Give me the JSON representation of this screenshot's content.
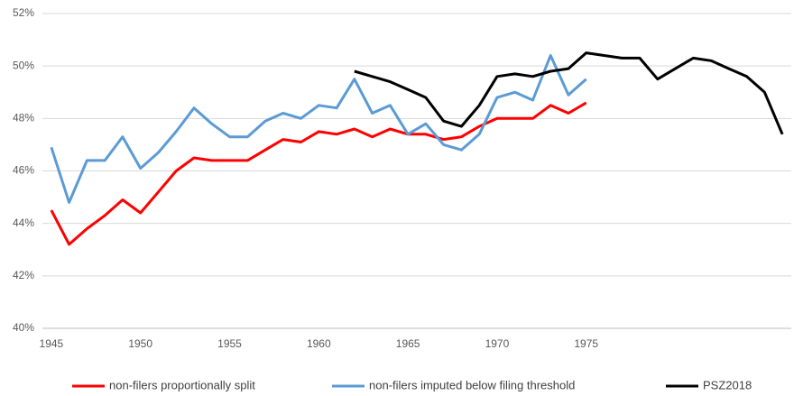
{
  "chart_data": {
    "type": "line",
    "x": [
      1945,
      1946,
      1947,
      1948,
      1949,
      1950,
      1951,
      1952,
      1953,
      1954,
      1955,
      1956,
      1957,
      1958,
      1959,
      1960,
      1961,
      1962,
      1963,
      1964,
      1965,
      1966,
      1967,
      1968,
      1969,
      1970,
      1971,
      1972,
      1973,
      1974,
      1975,
      1976,
      1977,
      1978,
      1979,
      1980,
      1981,
      1982,
      1983,
      1984,
      1985,
      1986
    ],
    "series": [
      {
        "name": "non-filers proportionally split",
        "color": "#ff0000",
        "values": [
          44.5,
          43.2,
          43.8,
          44.3,
          44.9,
          44.4,
          45.2,
          46.0,
          46.5,
          46.4,
          46.4,
          46.4,
          46.8,
          47.2,
          47.1,
          47.5,
          47.4,
          47.6,
          47.3,
          47.6,
          47.4,
          47.4,
          47.2,
          47.3,
          47.7,
          48.0,
          48.0,
          48.0,
          48.5,
          48.2,
          48.6,
          null,
          null,
          null,
          null,
          null,
          null,
          null,
          null,
          null,
          null,
          null
        ]
      },
      {
        "name": "non-filers imputed below filing threshold",
        "color": "#5b9bd5",
        "values": [
          46.9,
          44.8,
          46.4,
          46.4,
          47.3,
          46.1,
          46.7,
          47.5,
          48.4,
          47.8,
          47.3,
          47.3,
          47.9,
          48.2,
          48.0,
          48.5,
          48.4,
          49.5,
          48.2,
          48.5,
          47.4,
          47.8,
          47.0,
          46.8,
          47.4,
          48.8,
          49.0,
          48.7,
          50.4,
          48.9,
          49.5,
          null,
          null,
          null,
          null,
          null,
          null,
          null,
          null,
          null,
          null,
          null
        ]
      },
      {
        "name": "PSZ2018",
        "color": "#000000",
        "values": [
          null,
          null,
          null,
          null,
          null,
          null,
          null,
          null,
          null,
          null,
          null,
          null,
          null,
          null,
          null,
          null,
          null,
          49.8,
          49.6,
          49.4,
          49.1,
          48.8,
          47.9,
          47.7,
          48.5,
          49.6,
          49.7,
          49.6,
          49.8,
          49.9,
          50.5,
          50.4,
          50.3,
          50.3,
          49.5,
          49.9,
          50.3,
          50.2,
          49.9,
          49.6,
          49.0,
          47.4
        ]
      }
    ],
    "xlim": [
      1944.5,
      1986.5
    ],
    "xticks": [
      1945,
      1950,
      1955,
      1960,
      1965,
      1970,
      1975
    ],
    "ylim": [
      40,
      52
    ],
    "yticks": [
      {
        "value": 40,
        "label": "40%"
      },
      {
        "value": 42,
        "label": "42%"
      },
      {
        "value": 44,
        "label": "44%"
      },
      {
        "value": 46,
        "label": "46%"
      },
      {
        "value": 48,
        "label": "48%"
      },
      {
        "value": 50,
        "label": "50%"
      },
      {
        "value": 52,
        "label": "52%"
      }
    ],
    "grid": true,
    "legend": "bottom"
  }
}
